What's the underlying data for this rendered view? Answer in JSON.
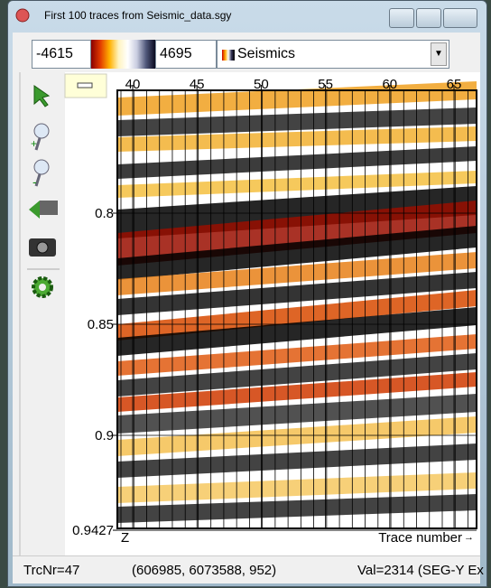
{
  "window": {
    "title": "First 100 traces from Seismic_data.sgy"
  },
  "toolbar": {
    "min": "-4615",
    "max": "4695",
    "colortable": "Seismics"
  },
  "plot": {
    "xticks": [
      40,
      45,
      50,
      55,
      60,
      65
    ],
    "yticks": [
      0.8,
      0.85,
      0.9,
      0.9427
    ],
    "y_axis_label": "Z",
    "x_axis_label": "Trace number"
  },
  "status": {
    "trace": "TrcNr=47",
    "position": "(606985, 6073588, 952)",
    "value": "Val=2314 (SEG-Y Ex"
  }
}
